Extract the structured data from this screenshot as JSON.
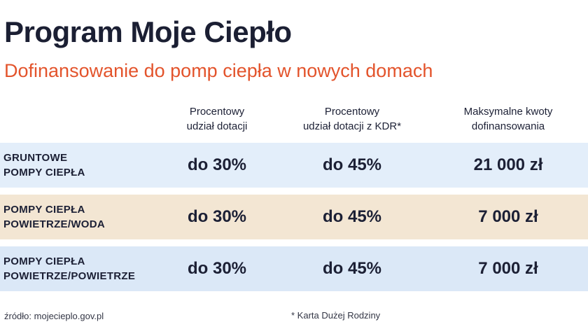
{
  "title": "Program Moje Ciepło",
  "subtitle": "Dofinansowanie do pomp ciepła w nowych domach",
  "table": {
    "columns": [
      {
        "line1": "Procentowy",
        "line2": "udział dotacji"
      },
      {
        "line1": "Procentowy",
        "line2": "udział dotacji z KDR*"
      },
      {
        "line1": "Maksymalne kwoty",
        "line2": "dofinansowania"
      }
    ],
    "rows": [
      {
        "label_line1": "GRUNTOWE",
        "label_line2": "POMPY CIEPŁA",
        "values": [
          "do 30%",
          "do 45%",
          "21 000 zł"
        ],
        "color": "#e3eefa"
      },
      {
        "label_line1": "POMPY CIEPŁA",
        "label_line2": "POWIETRZE/WODA",
        "values": [
          "do 30%",
          "do 45%",
          "7 000 zł"
        ],
        "color": "#f3e6d3"
      },
      {
        "label_line1": "POMPY CIEPŁA",
        "label_line2": "POWIETRZE/POWIETRZE",
        "values": [
          "do 30%",
          "do 45%",
          "7 000 zł"
        ],
        "color": "#dbe8f7"
      }
    ]
  },
  "source": "źródło: mojecieplo.gov.pl",
  "footnote": "* Karta Dużej Rodziny"
}
